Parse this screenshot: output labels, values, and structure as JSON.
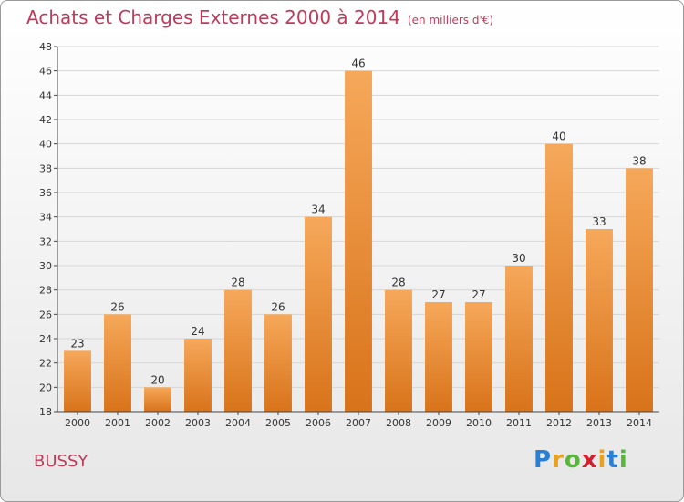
{
  "header": {
    "title": "Achats et Charges Externes 2000 à 2014",
    "subtitle": "(en milliers d'€)"
  },
  "footer": {
    "commune": "BUSSY",
    "logo_letters": [
      "P",
      "r",
      "o",
      "x",
      "i",
      "t",
      "i"
    ],
    "logo_colors": [
      "#2a7fd4",
      "#e8a21c",
      "#5ab53c",
      "#d2202f",
      "#e8a21c",
      "#2a7fd4",
      "#5ab53c"
    ]
  },
  "colors": {
    "bar_top": "#f6a85a",
    "bar_bottom": "#d8731a",
    "grid": "#d6d6d6",
    "axis": "#444444",
    "text": "#333333"
  },
  "chart_data": {
    "type": "bar",
    "title": "Achats et Charges Externes 2000 à 2014",
    "subtitle": "(en milliers d'€)",
    "categories": [
      "2000",
      "2001",
      "2002",
      "2003",
      "2004",
      "2005",
      "2006",
      "2007",
      "2008",
      "2009",
      "2010",
      "2011",
      "2012",
      "2013",
      "2014"
    ],
    "values": [
      23,
      26,
      20,
      24,
      28,
      26,
      34,
      46,
      28,
      27,
      27,
      30,
      40,
      33,
      38
    ],
    "ylim": [
      18,
      48
    ],
    "yticks": [
      18,
      20,
      22,
      24,
      26,
      28,
      30,
      32,
      34,
      36,
      38,
      40,
      42,
      44,
      46,
      48
    ],
    "grid": true,
    "data_labels": true
  }
}
